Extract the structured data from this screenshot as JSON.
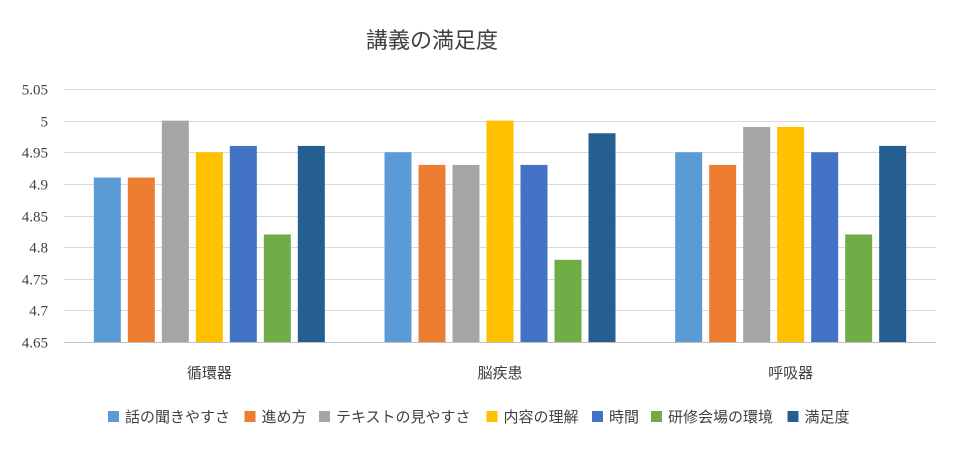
{
  "chart_data": {
    "type": "bar",
    "title": "講義の満足度",
    "categories": [
      "循環器",
      "脳疾患",
      "呼吸器"
    ],
    "ylim": [
      4.65,
      5.05
    ],
    "yticks": [
      "4.65",
      "4.7",
      "4.75",
      "4.8",
      "4.85",
      "4.9",
      "4.95",
      "5",
      "5.05"
    ],
    "grid": true,
    "legend_position": "bottom",
    "series": [
      {
        "name": "話の聞きやすさ",
        "color": "#5b9bd5",
        "values": [
          4.91,
          4.95,
          4.95
        ]
      },
      {
        "name": "進め方",
        "color": "#ed7d31",
        "values": [
          4.91,
          4.93,
          4.93
        ]
      },
      {
        "name": "テキストの見やすさ",
        "color": "#a5a5a5",
        "values": [
          5.0,
          4.93,
          4.99
        ]
      },
      {
        "name": "内容の理解",
        "color": "#ffc000",
        "values": [
          4.95,
          5.0,
          4.99
        ]
      },
      {
        "name": "時間",
        "color": "#4472c4",
        "values": [
          4.96,
          4.93,
          4.95
        ]
      },
      {
        "name": "研修会場の環境",
        "color": "#70ad47",
        "values": [
          4.82,
          4.78,
          4.82
        ]
      },
      {
        "name": "満足度",
        "color": "#255e91",
        "values": [
          4.96,
          4.98,
          4.96
        ]
      }
    ]
  }
}
